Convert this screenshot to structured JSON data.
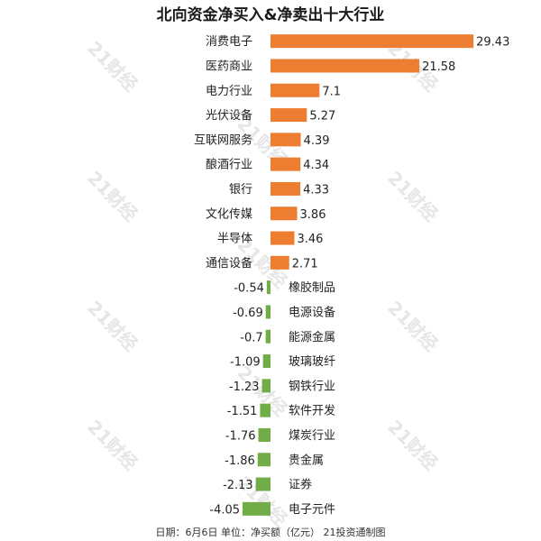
{
  "chart_data": {
    "type": "bar",
    "title": "北向资金净买入&净卖出十大行业",
    "categories": [
      "消费电子",
      "医药商业",
      "电力行业",
      "光伏设备",
      "互联网服务",
      "酿酒行业",
      "银行",
      "文化传媒",
      "半导体",
      "通信设备",
      "橡胶制品",
      "电源设备",
      "能源金属",
      "玻璃玻纤",
      "钢铁行业",
      "软件开发",
      "煤炭行业",
      "贵金属",
      "证券",
      "电子元件"
    ],
    "values": [
      29.43,
      21.58,
      7.1,
      5.27,
      4.39,
      4.34,
      4.33,
      3.86,
      3.46,
      2.71,
      -0.54,
      -0.69,
      -0.7,
      -1.09,
      -1.23,
      -1.51,
      -1.76,
      -1.86,
      -2.13,
      -4.05
    ],
    "value_labels": [
      "29.43",
      "21.58",
      "7.1",
      "5.27",
      "4.39",
      "4.34",
      "4.33",
      "3.86",
      "3.46",
      "2.71",
      "-0.54",
      "-0.69",
      "-0.7",
      "-1.09",
      "-1.23",
      "-1.51",
      "-1.76",
      "-1.86",
      "-2.13",
      "-4.05"
    ],
    "colors": {
      "positive": "#ED7D31",
      "negative": "#70AD47"
    },
    "orientation": "horizontal",
    "grid": false
  },
  "footer": "日期：6月6日  单位：净买额（亿元）  21投资通制图",
  "watermark": "21财经"
}
